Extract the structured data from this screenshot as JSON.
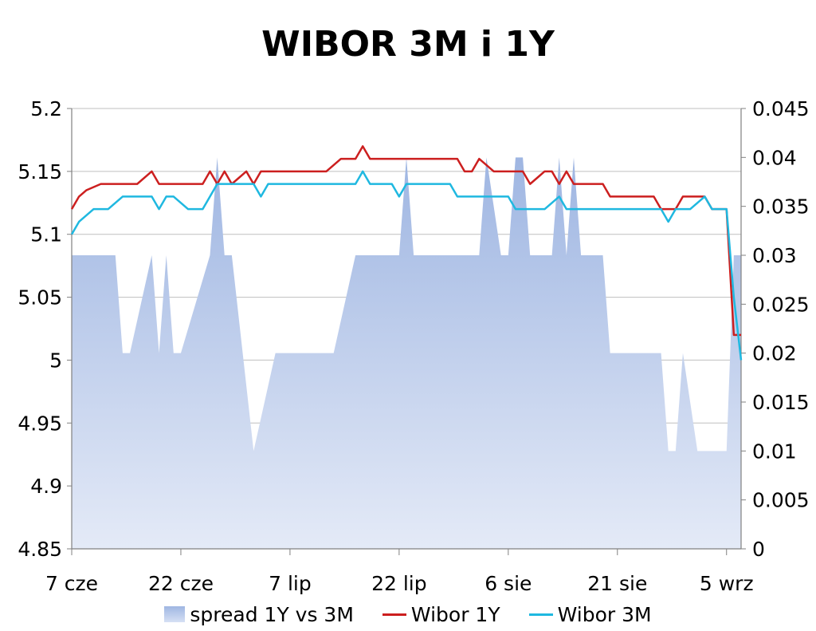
{
  "chart_data": {
    "type": "line",
    "title": "WIBOR 3M i 1Y",
    "left_axis": {
      "ylim": [
        4.85,
        5.2
      ],
      "ticks": [
        "5.2",
        "5.15",
        "5.1",
        "5.05",
        "5",
        "4.95",
        "4.9",
        "4.85"
      ]
    },
    "right_axis": {
      "ylim": [
        0,
        0.045
      ],
      "ticks": [
        "0.045",
        "0.04",
        "0.035",
        "0.03",
        "0.025",
        "0.02",
        "0.015",
        "0.01",
        "0.005",
        "0"
      ]
    },
    "x_ticks": [
      "7 cze",
      "22 cze",
      "7 lip",
      "22 lip",
      "6 sie",
      "21 sie",
      "5 wrz"
    ],
    "x_range_days": [
      0,
      92
    ],
    "grid": true,
    "legend": "bottom",
    "series": [
      {
        "name": "spread 1Y vs 3M",
        "type": "area",
        "axis": "right",
        "color": "#a9bde6",
        "x": [
          0,
          6,
          7,
          8,
          11,
          12,
          13,
          14,
          15,
          19,
          20,
          21,
          22,
          25,
          28,
          36,
          39,
          40,
          45,
          46,
          47,
          48,
          50,
          56,
          57,
          58,
          59,
          60,
          61,
          62,
          63,
          66,
          67,
          68,
          69,
          70,
          71,
          72,
          73,
          74,
          75,
          76,
          77,
          78,
          79,
          80,
          81,
          82,
          83,
          84,
          85,
          86,
          88,
          89,
          90,
          91,
          92
        ],
        "values": [
          0.03,
          0.03,
          0.02,
          0.02,
          0.03,
          0.02,
          0.03,
          0.02,
          0.02,
          0.03,
          0.04,
          0.03,
          0.03,
          0.01,
          0.02,
          0.02,
          0.03,
          0.03,
          0.03,
          0.04,
          0.03,
          0.03,
          0.03,
          0.03,
          0.04,
          0.035,
          0.03,
          0.03,
          0.04,
          0.04,
          0.03,
          0.03,
          0.04,
          0.03,
          0.04,
          0.03,
          0.03,
          0.03,
          0.03,
          0.02,
          0.02,
          0.02,
          0.02,
          0.02,
          0.02,
          0.02,
          0.02,
          0.01,
          0.01,
          0.02,
          0.015,
          0.01,
          0.01,
          0.01,
          0.01,
          0.03,
          0.03
        ]
      },
      {
        "name": "Wibor 1Y",
        "type": "line",
        "axis": "left",
        "color": "#cc1f1f",
        "x": [
          0,
          1,
          2,
          4,
          6,
          7,
          8,
          9,
          11,
          12,
          13,
          14,
          16,
          17,
          18,
          19,
          20,
          21,
          22,
          23,
          24,
          25,
          26,
          27,
          28,
          29,
          30,
          31,
          32,
          33,
          35,
          36,
          37,
          38,
          39,
          40,
          41,
          42,
          43,
          44,
          45,
          46,
          47,
          48,
          49,
          50,
          51,
          52,
          53,
          54,
          55,
          56,
          57,
          58,
          59,
          60,
          61,
          62,
          63,
          64,
          65,
          66,
          67,
          68,
          69,
          70,
          71,
          72,
          73,
          74,
          75,
          76,
          77,
          78,
          79,
          80,
          81,
          82,
          83,
          84,
          85,
          86,
          87,
          88,
          89,
          90,
          91,
          92
        ],
        "values": [
          5.12,
          5.13,
          5.135,
          5.14,
          5.14,
          5.14,
          5.14,
          5.14,
          5.15,
          5.14,
          5.14,
          5.14,
          5.14,
          5.14,
          5.14,
          5.15,
          5.14,
          5.15,
          5.14,
          5.145,
          5.15,
          5.14,
          5.15,
          5.15,
          5.15,
          5.15,
          5.15,
          5.15,
          5.15,
          5.15,
          5.15,
          5.155,
          5.16,
          5.16,
          5.16,
          5.17,
          5.16,
          5.16,
          5.16,
          5.16,
          5.16,
          5.16,
          5.16,
          5.16,
          5.16,
          5.16,
          5.16,
          5.16,
          5.16,
          5.15,
          5.15,
          5.16,
          5.155,
          5.15,
          5.15,
          5.15,
          5.15,
          5.15,
          5.14,
          5.145,
          5.15,
          5.15,
          5.14,
          5.15,
          5.14,
          5.14,
          5.14,
          5.14,
          5.14,
          5.13,
          5.13,
          5.13,
          5.13,
          5.13,
          5.13,
          5.13,
          5.12,
          5.12,
          5.12,
          5.13,
          5.13,
          5.13,
          5.13,
          5.12,
          5.12,
          5.12,
          5.02,
          5.02
        ]
      },
      {
        "name": "Wibor 3M",
        "type": "line",
        "axis": "left",
        "color": "#1fb8e0",
        "x": [
          0,
          1,
          2,
          3,
          4,
          5,
          6,
          7,
          8,
          9,
          10,
          11,
          12,
          13,
          14,
          15,
          16,
          17,
          18,
          19,
          20,
          21,
          22,
          23,
          24,
          25,
          26,
          27,
          28,
          29,
          30,
          31,
          32,
          33,
          34,
          35,
          36,
          37,
          38,
          39,
          40,
          41,
          42,
          43,
          44,
          45,
          46,
          47,
          48,
          49,
          50,
          51,
          52,
          53,
          54,
          55,
          56,
          57,
          58,
          59,
          60,
          61,
          62,
          63,
          64,
          65,
          66,
          67,
          68,
          69,
          70,
          71,
          72,
          73,
          74,
          75,
          76,
          77,
          78,
          79,
          80,
          81,
          82,
          83,
          84,
          85,
          86,
          87,
          88,
          89,
          90,
          91,
          92
        ],
        "values": [
          5.1,
          5.11,
          5.115,
          5.12,
          5.12,
          5.12,
          5.125,
          5.13,
          5.13,
          5.13,
          5.13,
          5.13,
          5.12,
          5.13,
          5.13,
          5.125,
          5.12,
          5.12,
          5.12,
          5.13,
          5.14,
          5.14,
          5.14,
          5.14,
          5.14,
          5.14,
          5.13,
          5.14,
          5.14,
          5.14,
          5.14,
          5.14,
          5.14,
          5.14,
          5.14,
          5.14,
          5.14,
          5.14,
          5.14,
          5.14,
          5.15,
          5.14,
          5.14,
          5.14,
          5.14,
          5.13,
          5.14,
          5.14,
          5.14,
          5.14,
          5.14,
          5.14,
          5.14,
          5.13,
          5.13,
          5.13,
          5.13,
          5.13,
          5.13,
          5.13,
          5.13,
          5.12,
          5.12,
          5.12,
          5.12,
          5.12,
          5.125,
          5.13,
          5.12,
          5.12,
          5.12,
          5.12,
          5.12,
          5.12,
          5.12,
          5.12,
          5.12,
          5.12,
          5.12,
          5.12,
          5.12,
          5.12,
          5.11,
          5.12,
          5.12,
          5.12,
          5.125,
          5.13,
          5.12,
          5.12,
          5.12,
          5.05,
          5.0
        ]
      }
    ]
  }
}
